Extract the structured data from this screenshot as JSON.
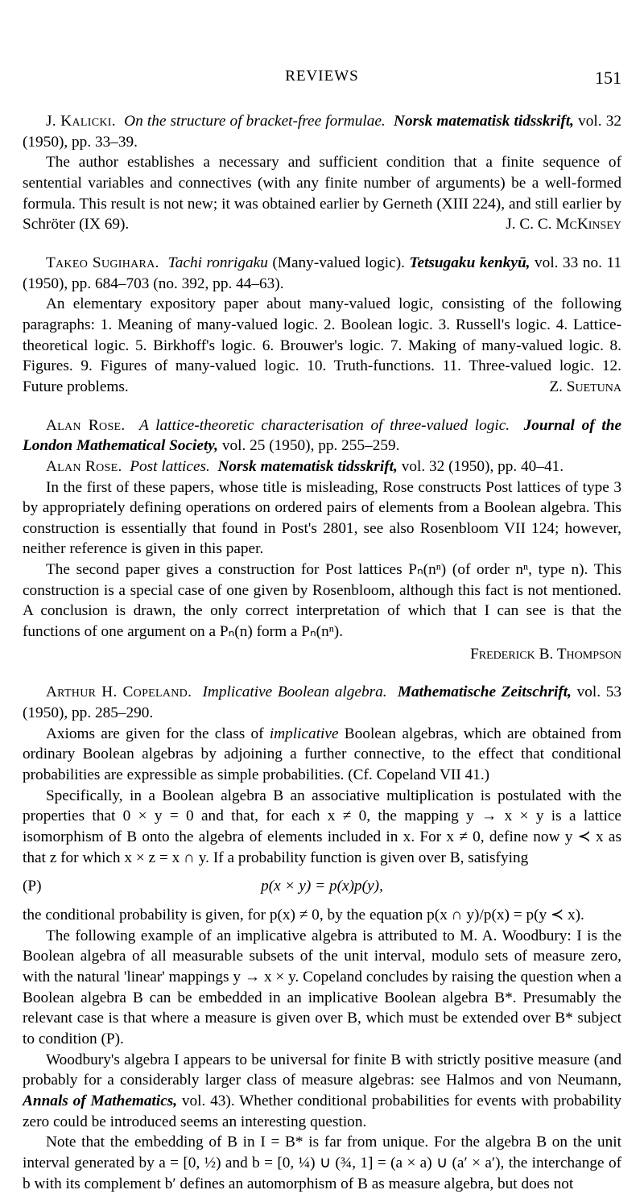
{
  "header": {
    "title": "REVIEWS",
    "page_number": "151"
  },
  "entries": [
    {
      "citation_parts": {
        "author": "J. Kalicki.",
        "title": "On the structure of bracket-free formulae.",
        "journal": "Norsk matematisk tidsskrift,",
        "vol_info": "vol. 32 (1950), pp. 33–39."
      },
      "body": [
        "The author establishes a necessary and sufficient condition that a finite sequence of sentential variables and connectives (with any finite number of arguments) be a well-formed formula. This result is not new; it was obtained earlier by Gerneth (XIII 224), and still earlier by Schröter (IX 69)."
      ],
      "reviewer": "J. C. C. McKinsey",
      "reviewer_inline": true
    },
    {
      "citation_parts": {
        "author": "Takeo Sugihara.",
        "title": "Tachi ronrigaku",
        "paren": " (Many-valued logic). ",
        "journal": "Tetsugaku kenkyū,",
        "vol_info": "vol. 33 no. 11 (1950), pp. 684–703 (no. 392, pp. 44–63)."
      },
      "body": [
        "An elementary expository paper about many-valued logic, consisting of the following paragraphs: 1. Meaning of many-valued logic. 2. Boolean logic. 3. Russell's logic. 4. Lattice-theoretical logic. 5. Birkhoff's logic. 6. Brouwer's logic. 7. Making of many-valued logic. 8. Figures. 9. Figures of many-valued logic. 10. Truth-functions. 11. Three-valued logic. 12. Future problems."
      ],
      "reviewer": "Z. Suetuna",
      "reviewer_inline": true
    },
    {
      "citations": [
        {
          "author": "Alan Rose.",
          "title": "A lattice-theoretic characterisation of three-valued logic.",
          "journal": "Journal of the London Mathematical Society,",
          "vol_info": "vol. 25 (1950), pp. 255–259."
        },
        {
          "author": "Alan Rose.",
          "title": "Post lattices.",
          "journal": "Norsk matematisk tidsskrift,",
          "vol_info": "vol. 32 (1950), pp. 40–41."
        }
      ],
      "body": [
        "In the first of these papers, whose title is misleading, Rose constructs Post lattices of type 3 by appropriately defining operations on ordered pairs of elements from a Boolean algebra. This construction is essentially that found in Post's 2801, see also Rosenbloom VII 124; however, neither reference is given in this paper.",
        "The second paper gives a construction for Post lattices Pₙ(nⁿ) (of order nⁿ, type n). This construction is a special case of one given by Rosenbloom, although this fact is not mentioned. A conclusion is drawn, the only correct interpretation of which that I can see is that the functions of one argument on a Pₙ(n) form a Pₙ(nⁿ)."
      ],
      "reviewer": "Frederick B. Thompson"
    },
    {
      "citation_parts": {
        "author": "Arthur H. Copeland.",
        "title": "Implicative Boolean algebra.",
        "journal": "Mathematische Zeitschrift,",
        "vol_info": "vol. 53 (1950), pp. 285–290."
      },
      "body_pre": [
        "Axioms are given for the class of implicative Boolean algebras, which are obtained from ordinary Boolean algebras by adjoining a further connective, to the effect that conditional probabilities are expressible as simple probabilities. (Cf. Copeland VII 41.)",
        "Specifically, in a Boolean algebra B an associative multiplication is postulated with the properties that 0 × y = 0 and that, for each x ≠ 0, the mapping y → x × y is a lattice isomorphism of B onto the algebra of elements included in x. For x ≠ 0, define now y ≺ x as that z for which x × z = x ∩ y. If a probability function is given over B, satisfying"
      ],
      "equation": {
        "label": "(P)",
        "expr": "p(x × y)  =  p(x)p(y),"
      },
      "body_post": [
        "the conditional probability is given, for p(x) ≠ 0, by the equation p(x ∩ y)/p(x) = p(y ≺ x).",
        "The following example of an implicative algebra is attributed to M. A. Woodbury: I is the Boolean algebra of all measurable subsets of the unit interval, modulo sets of measure zero, with the natural 'linear' mappings y → x × y. Copeland concludes by raising the question when a Boolean algebra B can be embedded in an implicative Boolean algebra B*. Presumably the relevant case is that where a measure is given over B, which must be extended over B* subject to condition (P).",
        "Woodbury's algebra I appears to be universal for finite B with strictly positive measure (and probably for a considerably larger class of measure algebras: see Halmos and von Neumann, Annals of Mathematics, vol. 43). Whether conditional probabilities for events with probability zero could be introduced seems an interesting question.",
        "Note that the embedding of B in I = B* is far from unique. For the algebra B on the unit interval generated by a = [0, ½) and b = [0, ¼) ∪ (¾, 1] = (a × a) ∪ (a′ × a′), the interchange of b with its complement b′ defines an automorphism of B as measure algebra, but does not"
      ],
      "annals_bold": "Annals of Mathematics,"
    }
  ]
}
